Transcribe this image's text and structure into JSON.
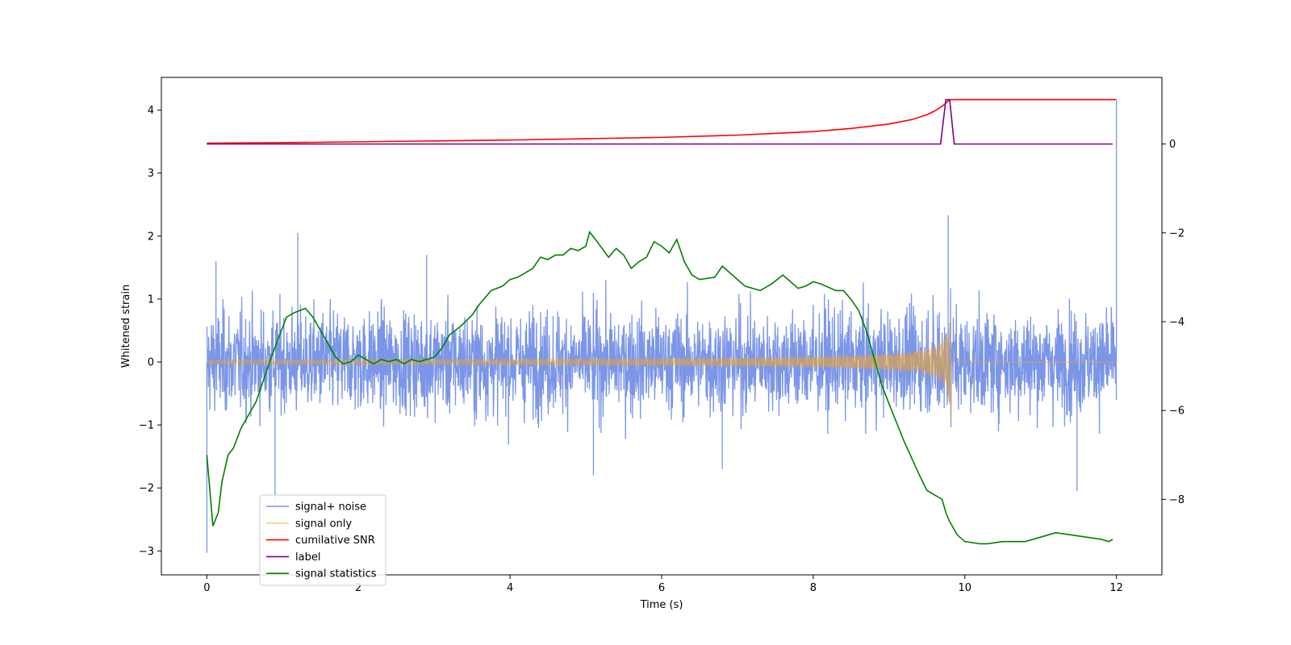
{
  "chart_data": {
    "type": "line",
    "xlabel": "Time (s)",
    "ylabel": "Whitened strain",
    "xlim": [
      -0.6,
      12.6
    ],
    "ylim": [
      -3.38,
      4.52
    ],
    "y2lim": [
      -9.7,
      1.5
    ],
    "xticks": [
      0,
      2,
      4,
      6,
      8,
      10,
      12
    ],
    "yticks": [
      -3,
      -2,
      -1,
      0,
      1,
      2,
      3,
      4
    ],
    "y2ticks": [
      -8,
      -6,
      -4,
      -2,
      0
    ],
    "grid": false,
    "legend_position": "lower-left",
    "series": [
      {
        "name": "signal+ noise",
        "axis": "left",
        "color": "#7b96e8",
        "noise_sigma": 0.42,
        "spikes": [
          [
            0.0,
            -3.03
          ],
          [
            0.12,
            1.6
          ],
          [
            0.9,
            -2.2
          ],
          [
            1.2,
            2.05
          ],
          [
            2.9,
            1.7
          ],
          [
            5.1,
            -1.8
          ],
          [
            6.8,
            -1.7
          ],
          [
            9.78,
            2.33
          ],
          [
            11.48,
            -2.05
          ],
          [
            12.0,
            4.15
          ]
        ]
      },
      {
        "name": "signal only",
        "axis": "left",
        "color": "#f5a623",
        "chirp": {
          "t_merge": 9.82,
          "peak_amplitude": 1.0,
          "t_end": 12.0
        }
      },
      {
        "name": "cumilative SNR",
        "axis": "right",
        "color": "#ff0000",
        "x": [
          0,
          1,
          2,
          3,
          4,
          5,
          6,
          7,
          7.5,
          8,
          8.5,
          9,
          9.3,
          9.5,
          9.6,
          9.7,
          9.75,
          9.8,
          9.82,
          10,
          11,
          12
        ],
        "y": [
          0.02,
          0.03,
          0.05,
          0.07,
          0.09,
          0.12,
          0.15,
          0.2,
          0.24,
          0.28,
          0.35,
          0.45,
          0.55,
          0.66,
          0.74,
          0.85,
          0.92,
          1.0,
          1.0,
          1.0,
          1.0,
          1.0
        ]
      },
      {
        "name": "label",
        "axis": "right",
        "color": "#800080",
        "x": [
          0,
          9.68,
          9.75,
          9.8,
          9.86,
          11.95
        ],
        "y": [
          0,
          0,
          1,
          1,
          0,
          0
        ]
      },
      {
        "name": "signal statistics",
        "axis": "right",
        "color": "#008000",
        "x": [
          0,
          0.08,
          0.15,
          0.2,
          0.28,
          0.35,
          0.45,
          0.55,
          0.65,
          0.75,
          0.85,
          0.95,
          1.05,
          1.15,
          1.3,
          1.4,
          1.5,
          1.6,
          1.7,
          1.8,
          1.9,
          2.0,
          2.1,
          2.2,
          2.3,
          2.4,
          2.5,
          2.6,
          2.7,
          2.8,
          2.9,
          3.0,
          3.1,
          3.2,
          3.35,
          3.5,
          3.6,
          3.75,
          3.9,
          4.0,
          4.1,
          4.2,
          4.3,
          4.4,
          4.5,
          4.6,
          4.7,
          4.8,
          4.9,
          5.0,
          5.05,
          5.15,
          5.3,
          5.4,
          5.5,
          5.6,
          5.7,
          5.8,
          5.9,
          6.0,
          6.1,
          6.2,
          6.3,
          6.4,
          6.5,
          6.7,
          6.8,
          6.9,
          7.0,
          7.1,
          7.3,
          7.45,
          7.6,
          7.7,
          7.8,
          7.9,
          8.0,
          8.1,
          8.3,
          8.4,
          8.5,
          8.6,
          8.7,
          8.8,
          8.9,
          9.0,
          9.2,
          9.4,
          9.5,
          9.6,
          9.7,
          9.75,
          9.8,
          9.9,
          10.0,
          10.2,
          10.3,
          10.5,
          10.8,
          11.0,
          11.2,
          11.4,
          11.6,
          11.8,
          11.9,
          11.95
        ],
        "y": [
          -7.0,
          -8.6,
          -8.3,
          -7.6,
          -7.0,
          -6.85,
          -6.4,
          -6.1,
          -5.8,
          -5.3,
          -4.8,
          -4.35,
          -3.9,
          -3.8,
          -3.7,
          -3.9,
          -4.2,
          -4.5,
          -4.8,
          -4.95,
          -4.9,
          -4.75,
          -4.85,
          -4.95,
          -4.85,
          -4.9,
          -4.85,
          -4.95,
          -4.85,
          -4.9,
          -4.85,
          -4.8,
          -4.6,
          -4.3,
          -4.1,
          -3.85,
          -3.6,
          -3.3,
          -3.2,
          -3.05,
          -3.0,
          -2.9,
          -2.8,
          -2.55,
          -2.6,
          -2.5,
          -2.5,
          -2.35,
          -2.4,
          -2.3,
          -1.98,
          -2.2,
          -2.55,
          -2.35,
          -2.5,
          -2.8,
          -2.65,
          -2.55,
          -2.2,
          -2.3,
          -2.45,
          -2.15,
          -2.65,
          -2.95,
          -3.05,
          -3.0,
          -2.75,
          -2.9,
          -3.05,
          -3.2,
          -3.3,
          -3.15,
          -2.95,
          -3.1,
          -3.25,
          -3.2,
          -3.1,
          -3.15,
          -3.3,
          -3.3,
          -3.5,
          -3.75,
          -4.2,
          -4.8,
          -5.4,
          -5.85,
          -6.7,
          -7.45,
          -7.8,
          -7.9,
          -8.0,
          -8.3,
          -8.5,
          -8.8,
          -8.95,
          -9.0,
          -9.0,
          -8.95,
          -8.95,
          -8.85,
          -8.75,
          -8.8,
          -8.85,
          -8.9,
          -8.95,
          -8.9
        ]
      }
    ]
  }
}
